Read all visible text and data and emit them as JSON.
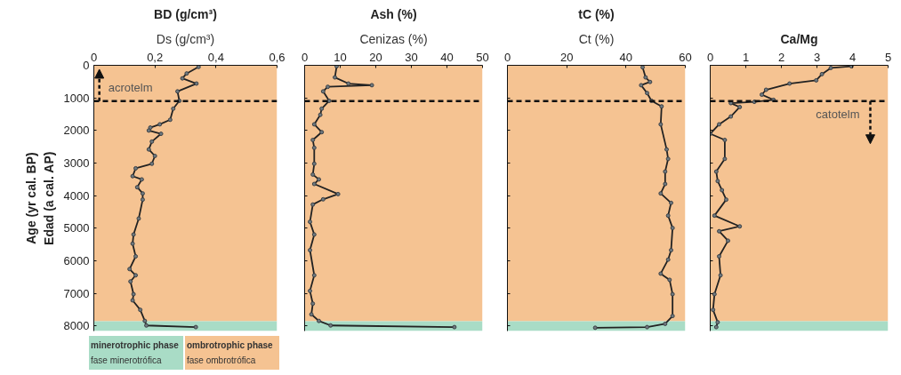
{
  "chart_data": [
    {
      "type": "line",
      "title": "BD (g/cm³)",
      "subtitle": "Ds (g/cm³)",
      "ylabel": "Age (yr cal. BP)\nEdad (a cal. AP)",
      "xlim": [
        0,
        0.6
      ],
      "xticks": [
        0,
        {
          "value": 0.2,
          "label": "0,2"
        },
        {
          "value": 0.4,
          "label": "0,4"
        },
        {
          "value": 0.6,
          "label": "0,6"
        }
      ],
      "ylim": [
        8150,
        0
      ],
      "yticks": [
        0,
        1000,
        2000,
        3000,
        4000,
        5000,
        6000,
        7000,
        8000
      ],
      "grid": false,
      "marker": "circle",
      "line_style": "solid",
      "series": [
        {
          "color": "#222222",
          "x": [
            0.343,
            0.304,
            0.29,
            0.336,
            0.274,
            0.28,
            0.26,
            0.25,
            0.216,
            0.185,
            0.18,
            0.22,
            0.19,
            0.18,
            0.2,
            0.19,
            0.137,
            0.127,
            0.157,
            0.142,
            0.16,
            0.16,
            0.147,
            0.13,
            0.127,
            0.137,
            0.117,
            0.137,
            0.12,
            0.13,
            0.127,
            0.152,
            0.167,
            0.172,
            0.334
          ],
          "values": [
            50,
            250,
            400,
            560,
            800,
            1090,
            1330,
            1670,
            1810,
            1910,
            2000,
            2100,
            2340,
            2580,
            2780,
            3020,
            3160,
            3400,
            3500,
            3740,
            3930,
            4120,
            4700,
            5190,
            5470,
            5860,
            6250,
            6440,
            6630,
            7020,
            7210,
            7500,
            7840,
            7980,
            8030
          ]
        }
      ],
      "bands": [
        {
          "axis": "y",
          "from": 0,
          "to": 7850,
          "color": "#f5c392",
          "label": "ombrotrophic phase\nfase ombrotrófica"
        },
        {
          "axis": "y",
          "from": 7850,
          "to": 8150,
          "color": "#a9dcc6",
          "label": "minerotrophic phase\nfase minerotrófica"
        }
      ],
      "ref_lines": [
        {
          "axis": "y",
          "value": 1100,
          "line_style": "dashed",
          "color": "#111111"
        }
      ],
      "annotations": [
        "acrotelm"
      ]
    },
    {
      "type": "line",
      "title": "Ash (%)",
      "subtitle": "Cenizas (%)",
      "xlim": [
        0,
        50
      ],
      "xticks": [
        0,
        10,
        20,
        30,
        40,
        50
      ],
      "ylim": [
        8150,
        0
      ],
      "yticks": [
        0,
        1000,
        2000,
        3000,
        4000,
        5000,
        6000,
        7000,
        8000
      ],
      "tick_labels": "x",
      "grid": false,
      "marker": "circle",
      "line_style": "solid",
      "series": [
        {
          "color": "#222222",
          "x": [
            9.0,
            8.5,
            12.3,
            18.9,
            6.5,
            5.2,
            6.9,
            4.8,
            4.4,
            2.7,
            4.8,
            2.3,
            2.7,
            2.7,
            2.3,
            4.0,
            2.7,
            9.4,
            5.2,
            2.3,
            1.5,
            2.7,
            1.5,
            2.7,
            1.5,
            2.3,
            1.9,
            4.0,
            7.3,
            42.1
          ],
          "values": [
            30,
            370,
            560,
            610,
            660,
            800,
            1090,
            1330,
            1520,
            1810,
            2050,
            2290,
            2530,
            3020,
            3350,
            3500,
            3640,
            3950,
            4110,
            4270,
            4800,
            5190,
            5670,
            6440,
            6920,
            7310,
            7640,
            7840,
            7980,
            8030
          ]
        }
      ],
      "bands": [
        {
          "axis": "y",
          "from": 0,
          "to": 7850,
          "color": "#f5c392"
        },
        {
          "axis": "y",
          "from": 7850,
          "to": 8150,
          "color": "#a9dcc6"
        }
      ],
      "ref_lines": [
        {
          "axis": "y",
          "value": 1100,
          "line_style": "dashed",
          "color": "#111111"
        }
      ]
    },
    {
      "type": "line",
      "title": "tC (%)",
      "subtitle": "Ct (%)",
      "xlim": [
        0,
        60
      ],
      "xticks": [
        0,
        20,
        40,
        60
      ],
      "ylim": [
        8150,
        0
      ],
      "yticks": [
        0,
        1000,
        2000,
        3000,
        4000,
        5000,
        6000,
        7000,
        8000
      ],
      "tick_labels": "x",
      "grid": false,
      "marker": "circle",
      "line_style": "solid",
      "series": [
        {
          "color": "#222222",
          "x": [
            45.6,
            46.6,
            48.1,
            45.1,
            47.1,
            48.6,
            52.0,
            51.7,
            53.7,
            54.2,
            53.2,
            53.2,
            51.7,
            55.2,
            54.2,
            55.7,
            55.2,
            54.2,
            51.7,
            54.7,
            55.7,
            55.7,
            53.2,
            47.1,
            29.6
          ],
          "values": [
            60,
            370,
            510,
            610,
            850,
            1090,
            1260,
            1810,
            2580,
            2870,
            3260,
            3640,
            3930,
            4220,
            4610,
            4990,
            5670,
            5960,
            6390,
            6580,
            7020,
            7690,
            7930,
            8030,
            8050
          ]
        }
      ],
      "bands": [
        {
          "axis": "y",
          "from": 0,
          "to": 7850,
          "color": "#f5c392"
        },
        {
          "axis": "y",
          "from": 7850,
          "to": 8150,
          "color": "#a9dcc6"
        }
      ],
      "ref_lines": [
        {
          "axis": "y",
          "value": 1100,
          "line_style": "dashed",
          "color": "#111111"
        }
      ]
    },
    {
      "type": "line",
      "title": "Ca/Mg",
      "xlim": [
        0,
        5
      ],
      "xticks": [
        0,
        1,
        2,
        3,
        4,
        5
      ],
      "ylim": [
        8150,
        0
      ],
      "yticks": [
        0,
        1000,
        2000,
        3000,
        4000,
        5000,
        6000,
        7000,
        8000
      ],
      "tick_labels": "x",
      "grid": false,
      "marker": "circle",
      "line_style": "solid",
      "series": [
        {
          "color": "#222222",
          "x": [
            3.97,
            3.39,
            3.14,
            2.98,
            2.23,
            1.57,
            1.45,
            1.78,
            1.24,
            0.58,
            0.83,
            0.58,
            0.25,
            0,
            0.41,
            0.41,
            0.17,
            0.21,
            0.33,
            0.45,
            0.12,
            0.83,
            0.25,
            0.5,
            0.25,
            0.29,
            0.12,
            0.08,
            0.21,
            0.17
          ],
          "values": [
            30,
            80,
            270,
            460,
            560,
            750,
            900,
            1060,
            1120,
            1160,
            1280,
            1570,
            1810,
            2100,
            2290,
            2870,
            3260,
            3550,
            3830,
            4120,
            4610,
            4940,
            5090,
            5380,
            5860,
            6440,
            7020,
            7500,
            7880,
            8030
          ]
        }
      ],
      "bands": [
        {
          "axis": "y",
          "from": 0,
          "to": 7850,
          "color": "#f5c392"
        },
        {
          "axis": "y",
          "from": 7850,
          "to": 8150,
          "color": "#a9dcc6"
        }
      ],
      "ref_lines": [
        {
          "axis": "y",
          "value": 1100,
          "line_style": "dashed",
          "color": "#111111"
        }
      ],
      "annotations": [
        "catotelm"
      ]
    }
  ]
}
